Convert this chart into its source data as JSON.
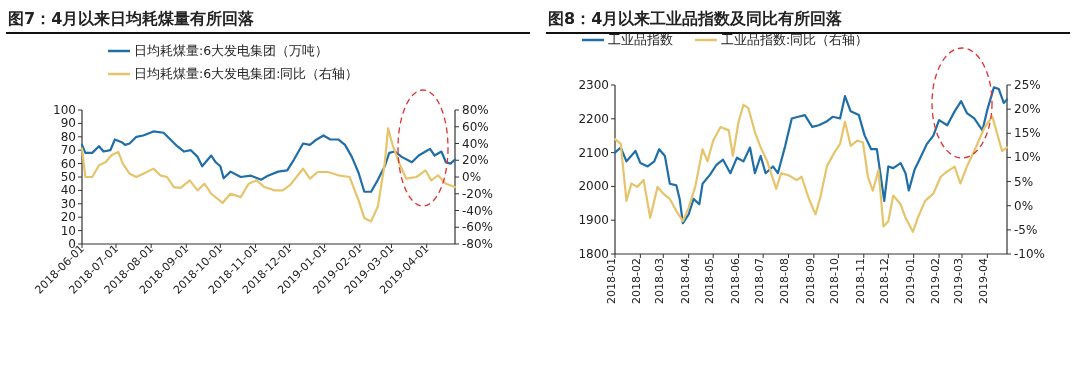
{
  "chart_data": [
    {
      "type": "line",
      "title": "图7：4月以来日均耗煤量有所回落",
      "legend": "top",
      "grid": false,
      "marker": "none",
      "line_style": "solid",
      "xlim": [
        "2018-06-01",
        "2019-04-26"
      ],
      "xticks": [
        "2018-06-01",
        "2018-07-01",
        "2018-08-01",
        "2018-09-01",
        "2018-10-01",
        "2018-11-01",
        "2018-12-01",
        "2019-01-01",
        "2019-02-01",
        "2019-03-01",
        "2019-04-01"
      ],
      "ylim": [
        0,
        100
      ],
      "yticks": [
        0,
        10,
        20,
        30,
        40,
        50,
        60,
        70,
        80,
        90,
        100
      ],
      "y2lim": [
        -80,
        80
      ],
      "y2ticks": [
        {
          "value": -80,
          "label": "-80%"
        },
        {
          "value": -60,
          "label": "-60%"
        },
        {
          "value": -40,
          "label": "-40%"
        },
        {
          "value": -20,
          "label": "-20%"
        },
        {
          "value": 0,
          "label": "0%"
        },
        {
          "value": 20,
          "label": "20%"
        },
        {
          "value": 40,
          "label": "40%"
        },
        {
          "value": 60,
          "label": "60%"
        },
        {
          "value": 80,
          "label": "80%"
        }
      ],
      "series": [
        {
          "name": "日均耗煤量:6大发电集团（万吨）",
          "color": "#1f6ea8",
          "x": [
            "2018-06-01",
            "2018-06-04",
            "2018-06-10",
            "2018-06-16",
            "2018-06-20",
            "2018-06-26",
            "2018-06-30",
            "2018-07-06",
            "2018-07-09",
            "2018-07-13",
            "2018-07-19",
            "2018-07-25",
            "2018-08-03",
            "2018-08-12",
            "2018-08-18",
            "2018-08-24",
            "2018-08-30",
            "2018-09-05",
            "2018-09-11",
            "2018-09-15",
            "2018-09-23",
            "2018-09-27",
            "2018-10-01",
            "2018-10-04",
            "2018-10-10",
            "2018-10-19",
            "2018-10-28",
            "2018-11-06",
            "2018-11-12",
            "2018-11-21",
            "2018-11-29",
            "2018-12-05",
            "2018-12-13",
            "2018-12-19",
            "2018-12-25",
            "2018-12-31",
            "2019-01-06",
            "2019-01-13",
            "2019-01-19",
            "2019-01-25",
            "2019-01-31",
            "2019-02-05",
            "2019-02-11",
            "2019-02-17",
            "2019-02-23",
            "2019-02-27",
            "2019-03-04",
            "2019-03-10",
            "2019-03-19",
            "2019-03-25",
            "2019-03-31",
            "2019-04-04",
            "2019-04-08",
            "2019-04-14",
            "2019-04-18",
            "2019-04-22",
            "2019-04-26"
          ],
          "values": [
            74,
            68,
            68,
            73,
            69,
            70,
            78,
            76,
            74,
            75,
            80,
            81,
            84,
            83,
            78,
            73,
            69,
            70,
            65,
            58,
            66,
            61,
            58,
            49,
            54,
            50,
            51,
            48,
            51,
            54,
            55,
            63,
            75,
            74,
            78,
            81,
            78,
            78,
            74,
            65,
            53,
            39,
            39,
            48,
            58,
            68,
            69,
            65,
            61,
            66,
            69,
            71,
            66,
            69,
            61,
            60,
            63
          ]
        },
        {
          "name": "日均耗煤量:6大发电集团:同比（右轴）",
          "color": "#e5c46b",
          "axis": "y2",
          "x": [
            "2018-06-01",
            "2018-06-04",
            "2018-06-10",
            "2018-06-16",
            "2018-06-22",
            "2018-06-27",
            "2018-07-03",
            "2018-07-07",
            "2018-07-13",
            "2018-07-19",
            "2018-07-25",
            "2018-08-03",
            "2018-08-09",
            "2018-08-15",
            "2018-08-21",
            "2018-08-27",
            "2018-09-04",
            "2018-09-11",
            "2018-09-17",
            "2018-09-23",
            "2018-10-03",
            "2018-10-10",
            "2018-10-19",
            "2018-10-26",
            "2018-11-02",
            "2018-11-09",
            "2018-11-18",
            "2018-11-25",
            "2018-12-02",
            "2018-12-13",
            "2018-12-19",
            "2018-12-26",
            "2019-01-04",
            "2019-01-13",
            "2019-01-23",
            "2019-01-31",
            "2019-02-05",
            "2019-02-11",
            "2019-02-17",
            "2019-02-23",
            "2019-02-26",
            "2019-03-02",
            "2019-03-08",
            "2019-03-14",
            "2019-03-23",
            "2019-03-31",
            "2019-04-05",
            "2019-04-11",
            "2019-04-18",
            "2019-04-26"
          ],
          "values": [
            34,
            0,
            0,
            14,
            18,
            26,
            30,
            16,
            4,
            0,
            4,
            10,
            2,
            0,
            -12,
            -13,
            -4,
            -16,
            -8,
            -20,
            -31,
            -20,
            -24,
            -8,
            -4,
            -12,
            -16,
            -16,
            -9,
            10,
            -2,
            6,
            6,
            2,
            0,
            -28,
            -49,
            -53,
            -35,
            16,
            58,
            38,
            16,
            -2,
            0,
            8,
            -4,
            2,
            -8,
            -12
          ]
        }
      ]
    },
    {
      "type": "line",
      "title": "图8：4月以来工业品指数及同比有所回落",
      "legend": "top",
      "grid": false,
      "marker": "none",
      "line_style": "solid",
      "xlim": [
        "2018-01-01",
        "2019-04-25"
      ],
      "xticks": [
        "2018-01",
        "2018-02",
        "2018-03",
        "2018-04",
        "2018-05",
        "2018-06",
        "2018-07",
        "2018-08",
        "2018-09",
        "2018-10",
        "2018-11",
        "2018-12",
        "2019-01",
        "2019-02",
        "2019-03",
        "2019-04"
      ],
      "ylim": [
        1800,
        2300
      ],
      "yticks": [
        1800,
        1900,
        2000,
        2100,
        2200,
        2300
      ],
      "y2lim": [
        -10,
        25
      ],
      "y2ticks": [
        {
          "value": -10,
          "label": "-10%"
        },
        {
          "value": -5,
          "label": "-5%"
        },
        {
          "value": 0,
          "label": "0%"
        },
        {
          "value": 5,
          "label": "5%"
        },
        {
          "value": 10,
          "label": "10%"
        },
        {
          "value": 15,
          "label": "15%"
        },
        {
          "value": 20,
          "label": "20%"
        },
        {
          "value": 25,
          "label": "25%"
        }
      ],
      "series": [
        {
          "name": "工业品指数",
          "color": "#1f6ea8",
          "x": [
            "2018-01-01",
            "2018-01-08",
            "2018-01-15",
            "2018-01-26",
            "2018-02-01",
            "2018-02-10",
            "2018-02-18",
            "2018-02-24",
            "2018-03-03",
            "2018-03-09",
            "2018-03-17",
            "2018-03-21",
            "2018-03-25",
            "2018-04-01",
            "2018-04-07",
            "2018-04-14",
            "2018-04-18",
            "2018-04-27",
            "2018-05-05",
            "2018-05-13",
            "2018-05-22",
            "2018-05-30",
            "2018-06-07",
            "2018-06-15",
            "2018-06-21",
            "2018-06-28",
            "2018-07-04",
            "2018-07-13",
            "2018-07-19",
            "2018-07-28",
            "2018-08-05",
            "2018-08-13",
            "2018-08-21",
            "2018-08-30",
            "2018-09-07",
            "2018-09-16",
            "2018-09-24",
            "2018-10-03",
            "2018-10-09",
            "2018-10-16",
            "2018-10-26",
            "2018-11-02",
            "2018-11-10",
            "2018-11-17",
            "2018-11-26",
            "2018-12-01",
            "2018-12-07",
            "2018-12-16",
            "2018-12-22",
            "2018-12-26",
            "2019-01-02",
            "2019-01-08",
            "2019-01-17",
            "2019-01-25",
            "2019-02-01",
            "2019-02-11",
            "2019-02-20",
            "2019-02-28",
            "2019-03-07",
            "2019-03-16",
            "2019-03-26",
            "2019-04-01",
            "2019-04-09",
            "2019-04-15",
            "2019-04-21",
            "2019-04-25"
          ],
          "values": [
            2100,
            2115,
            2074,
            2105,
            2069,
            2059,
            2074,
            2110,
            2090,
            2008,
            2003,
            1963,
            1891,
            1917,
            1963,
            1947,
            2008,
            2034,
            2064,
            2079,
            2039,
            2085,
            2074,
            2115,
            2039,
            2090,
            2039,
            2059,
            2039,
            2120,
            2201,
            2206,
            2211,
            2176,
            2181,
            2191,
            2206,
            2201,
            2267,
            2222,
            2211,
            2151,
            2110,
            2110,
            1957,
            2059,
            2054,
            2069,
            2039,
            1988,
            2049,
            2079,
            2125,
            2150,
            2196,
            2181,
            2222,
            2252,
            2217,
            2201,
            2166,
            2227,
            2293,
            2288,
            2247,
            2257
          ]
        },
        {
          "name": "工业品指数:同比（右轴）",
          "color": "#e5c46b",
          "axis": "y2",
          "x": [
            "2018-01-01",
            "2018-01-08",
            "2018-01-15",
            "2018-01-21",
            "2018-01-28",
            "2018-02-05",
            "2018-02-13",
            "2018-02-22",
            "2018-03-01",
            "2018-03-09",
            "2018-03-17",
            "2018-03-25",
            "2018-04-01",
            "2018-04-09",
            "2018-04-18",
            "2018-04-24",
            "2018-05-01",
            "2018-05-10",
            "2018-05-20",
            "2018-05-25",
            "2018-06-01",
            "2018-06-07",
            "2018-06-13",
            "2018-06-21",
            "2018-06-28",
            "2018-07-06",
            "2018-07-17",
            "2018-07-23",
            "2018-08-01",
            "2018-08-11",
            "2018-08-17",
            "2018-08-26",
            "2018-09-03",
            "2018-09-09",
            "2018-09-17",
            "2018-09-26",
            "2018-10-03",
            "2018-10-09",
            "2018-10-16",
            "2018-10-24",
            "2018-10-31",
            "2018-11-06",
            "2018-11-12",
            "2018-11-19",
            "2018-11-25",
            "2018-12-01",
            "2018-12-07",
            "2018-12-16",
            "2018-12-22",
            "2018-12-31",
            "2019-01-06",
            "2019-01-15",
            "2019-01-25",
            "2019-02-03",
            "2019-02-11",
            "2019-02-20",
            "2019-02-27",
            "2019-03-07",
            "2019-03-18",
            "2019-03-28",
            "2019-04-07",
            "2019-04-13",
            "2019-04-19",
            "2019-04-25"
          ],
          "values": [
            13.8,
            12.8,
            1.0,
            4.6,
            3.9,
            5.3,
            -2.5,
            3.9,
            2.5,
            1.4,
            -1.1,
            -3.2,
            -0.4,
            3.9,
            11.7,
            9.2,
            13.5,
            16.3,
            15.6,
            10.3,
            17.4,
            20.9,
            20.2,
            15.2,
            12.1,
            9.2,
            3.5,
            6.7,
            6.3,
            5.3,
            6.0,
            1.4,
            -1.8,
            1.8,
            8.2,
            11.0,
            12.8,
            17.4,
            12.4,
            13.5,
            13.1,
            6.0,
            3.1,
            7.4,
            -4.3,
            -3.2,
            2.1,
            0.3,
            -2.5,
            -5.4,
            -2.5,
            1.0,
            2.5,
            6.0,
            7.1,
            8.1,
            4.6,
            8.1,
            12.1,
            16.0,
            18.5,
            14.9,
            11.3,
            12.1
          ]
        }
      ]
    }
  ]
}
